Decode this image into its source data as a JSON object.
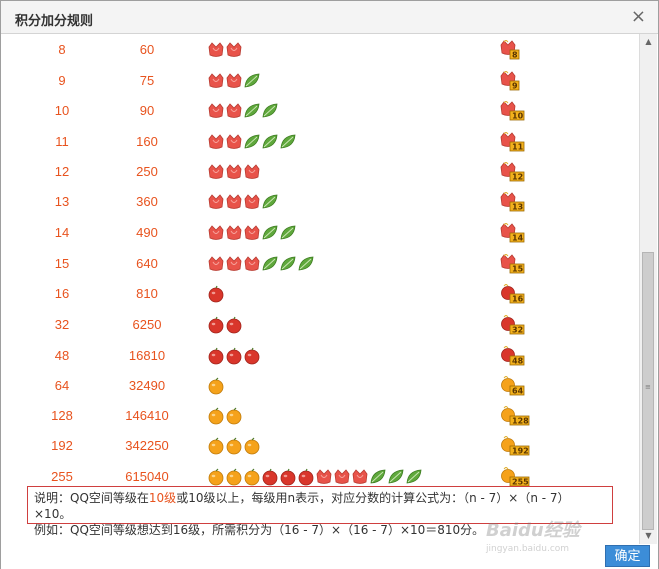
{
  "dialog": {
    "title": "积分加分规则",
    "close_glyph": "×",
    "ok_label": "确定"
  },
  "colors": {
    "accent": "#e8531e",
    "flower_red": "#e8534a",
    "leaf_green": "#5fa83c",
    "fruit_red": "#d9362b",
    "fruit_orange": "#f5a21b",
    "note_border": "#cf3f3f",
    "ok_button": "#3c8dd8"
  },
  "icon_types": {
    "flower": "tulip-icon",
    "leaf": "leaf-icon",
    "fruit_red": "apple-icon",
    "fruit_orange": "orange-icon"
  },
  "rows": [
    {
      "level": "8",
      "score": "60",
      "icons": [
        "flower",
        "flower"
      ],
      "badge": "8"
    },
    {
      "level": "9",
      "score": "75",
      "icons": [
        "flower",
        "flower",
        "leaf"
      ],
      "badge": "9"
    },
    {
      "level": "10",
      "score": "90",
      "icons": [
        "flower",
        "flower",
        "leaf",
        "leaf"
      ],
      "badge": "10"
    },
    {
      "level": "11",
      "score": "160",
      "icons": [
        "flower",
        "flower",
        "leaf",
        "leaf",
        "leaf"
      ],
      "badge": "11"
    },
    {
      "level": "12",
      "score": "250",
      "icons": [
        "flower",
        "flower",
        "flower"
      ],
      "badge": "12"
    },
    {
      "level": "13",
      "score": "360",
      "icons": [
        "flower",
        "flower",
        "flower",
        "leaf"
      ],
      "badge": "13"
    },
    {
      "level": "14",
      "score": "490",
      "icons": [
        "flower",
        "flower",
        "flower",
        "leaf",
        "leaf"
      ],
      "badge": "14"
    },
    {
      "level": "15",
      "score": "640",
      "icons": [
        "flower",
        "flower",
        "flower",
        "leaf",
        "leaf",
        "leaf"
      ],
      "badge": "15"
    },
    {
      "level": "16",
      "score": "810",
      "icons": [
        "fruit_red"
      ],
      "badge": "16"
    },
    {
      "level": "32",
      "score": "6250",
      "icons": [
        "fruit_red",
        "fruit_red"
      ],
      "badge": "32"
    },
    {
      "level": "48",
      "score": "16810",
      "icons": [
        "fruit_red",
        "fruit_red",
        "fruit_red"
      ],
      "badge": "48"
    },
    {
      "level": "64",
      "score": "32490",
      "icons": [
        "fruit_orange"
      ],
      "badge": "64"
    },
    {
      "level": "128",
      "score": "146410",
      "icons": [
        "fruit_orange",
        "fruit_orange"
      ],
      "badge": "128"
    },
    {
      "level": "192",
      "score": "342250",
      "icons": [
        "fruit_orange",
        "fruit_orange",
        "fruit_orange"
      ],
      "badge": "192"
    },
    {
      "level": "255",
      "score": "615040",
      "icons": [
        "fruit_orange",
        "fruit_orange",
        "fruit_orange",
        "fruit_red",
        "fruit_red",
        "fruit_red",
        "flower",
        "flower",
        "flower",
        "leaf",
        "leaf",
        "leaf"
      ],
      "badge": "255"
    }
  ],
  "note": {
    "line1_prefix": "说明：QQ空间等级在",
    "line1_highlight": "10级",
    "line1_suffix": "或10级以上，每级用n表示，对应分数的计算公式为：（n - 7）×（n - 7）×10。",
    "line2": "例如：QQ空间等级想达到16级，所需积分为（16 - 7）×（16 - 7）×10＝810分。"
  },
  "scrollbar": {
    "up_glyph": "▲",
    "down_glyph": "▼",
    "grip_glyph": "≡"
  },
  "watermark": {
    "text": "Baidu经验",
    "sub": "jingyan.baidu.com"
  }
}
